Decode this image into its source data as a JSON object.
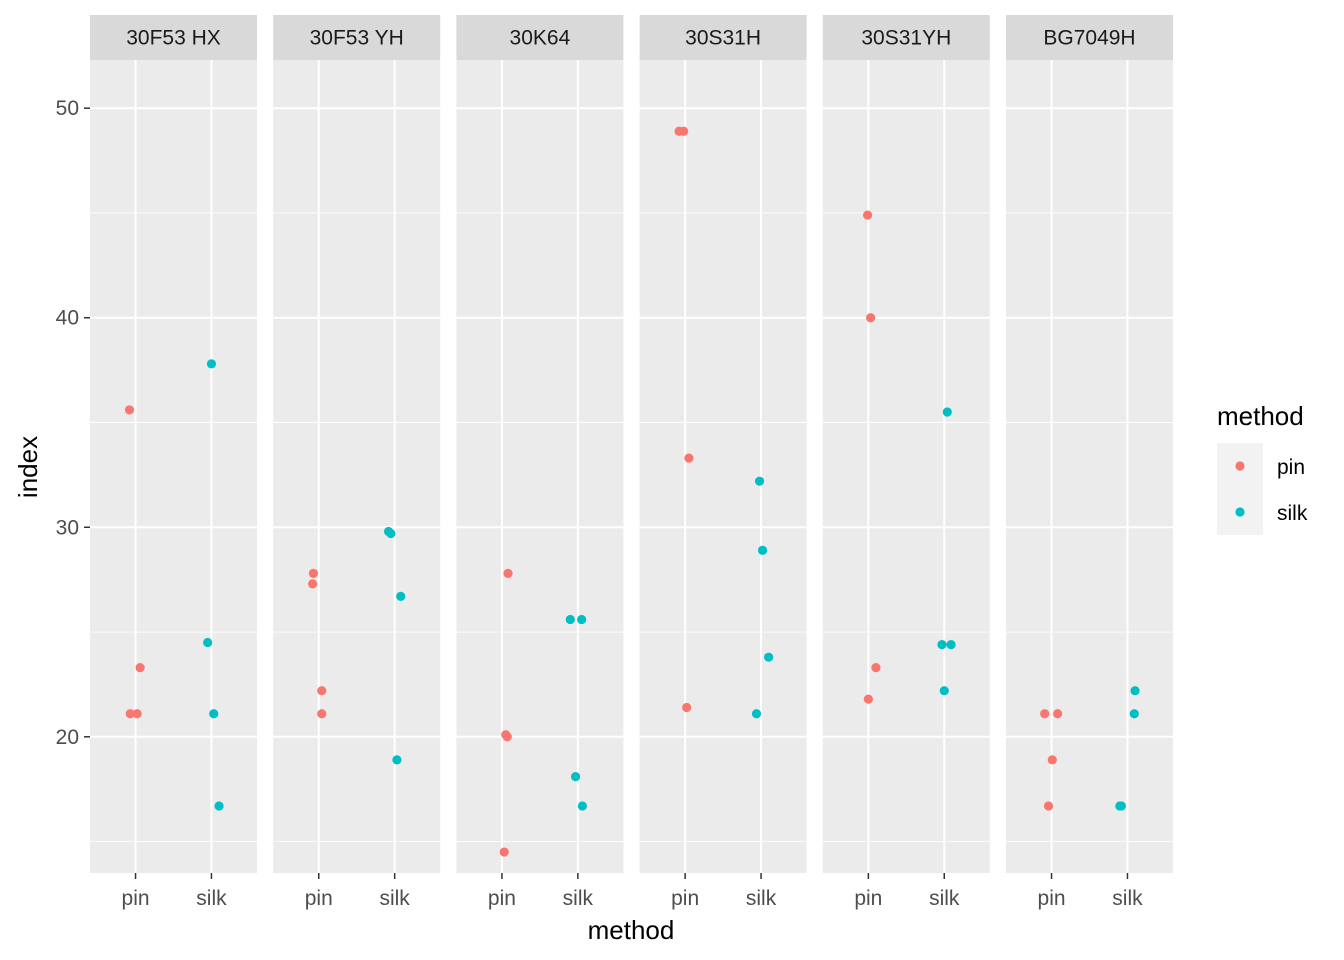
{
  "chart_data": {
    "type": "scatter",
    "facet_by": "variety",
    "xlabel": "method",
    "ylabel": "index",
    "ylim": [
      13.5,
      52.3
    ],
    "yticks": [
      20,
      30,
      40,
      50
    ],
    "categories": [
      "pin",
      "silk"
    ],
    "grid": true,
    "legend": {
      "title": "method",
      "position": "right",
      "entries": [
        {
          "label": "pin",
          "color": "#F8766D"
        },
        {
          "label": "silk",
          "color": "#00BFC4"
        }
      ]
    },
    "panels": [
      {
        "label": "30F53 HX",
        "series": [
          {
            "name": "pin",
            "points": [
              {
                "x": -0.08,
                "y": 35.6
              },
              {
                "x": 0.06,
                "y": 23.3
              },
              {
                "x": -0.07,
                "y": 21.1
              },
              {
                "x": 0.02,
                "y": 21.1
              }
            ]
          },
          {
            "name": "silk",
            "points": [
              {
                "x": 0.0,
                "y": 37.8
              },
              {
                "x": -0.05,
                "y": 24.5
              },
              {
                "x": 0.03,
                "y": 21.1
              },
              {
                "x": 0.1,
                "y": 16.7
              }
            ]
          }
        ]
      },
      {
        "label": "30F53 YH",
        "series": [
          {
            "name": "pin",
            "points": [
              {
                "x": -0.07,
                "y": 27.8
              },
              {
                "x": -0.08,
                "y": 27.3
              },
              {
                "x": 0.04,
                "y": 22.2
              },
              {
                "x": 0.04,
                "y": 21.1
              }
            ]
          },
          {
            "name": "silk",
            "points": [
              {
                "x": -0.08,
                "y": 29.8
              },
              {
                "x": -0.05,
                "y": 29.7
              },
              {
                "x": 0.08,
                "y": 26.7
              },
              {
                "x": 0.03,
                "y": 18.9
              }
            ]
          }
        ]
      },
      {
        "label": "30K64",
        "series": [
          {
            "name": "pin",
            "points": [
              {
                "x": 0.08,
                "y": 27.8
              },
              {
                "x": 0.05,
                "y": 20.1
              },
              {
                "x": 0.07,
                "y": 20.0
              },
              {
                "x": 0.03,
                "y": 14.5
              }
            ]
          },
          {
            "name": "silk",
            "points": [
              {
                "x": -0.1,
                "y": 25.6
              },
              {
                "x": 0.05,
                "y": 25.6
              },
              {
                "x": -0.03,
                "y": 18.1
              },
              {
                "x": 0.06,
                "y": 16.7
              }
            ]
          }
        ]
      },
      {
        "label": "30S31H",
        "series": [
          {
            "name": "pin",
            "points": [
              {
                "x": -0.08,
                "y": 48.9
              },
              {
                "x": -0.02,
                "y": 48.9
              },
              {
                "x": 0.05,
                "y": 33.3
              },
              {
                "x": 0.02,
                "y": 21.4
              }
            ]
          },
          {
            "name": "silk",
            "points": [
              {
                "x": -0.02,
                "y": 32.2
              },
              {
                "x": 0.02,
                "y": 28.9
              },
              {
                "x": 0.1,
                "y": 23.8
              },
              {
                "x": -0.06,
                "y": 21.1
              }
            ]
          }
        ]
      },
      {
        "label": "30S31YH",
        "series": [
          {
            "name": "pin",
            "points": [
              {
                "x": -0.01,
                "y": 44.9
              },
              {
                "x": 0.03,
                "y": 40.0
              },
              {
                "x": 0.1,
                "y": 23.3
              },
              {
                "x": 0.0,
                "y": 21.8
              }
            ]
          },
          {
            "name": "silk",
            "points": [
              {
                "x": 0.04,
                "y": 35.5
              },
              {
                "x": -0.03,
                "y": 24.4
              },
              {
                "x": 0.09,
                "y": 24.4
              },
              {
                "x": 0.0,
                "y": 22.2
              }
            ]
          }
        ]
      },
      {
        "label": "BG7049H",
        "series": [
          {
            "name": "pin",
            "points": [
              {
                "x": -0.09,
                "y": 21.1
              },
              {
                "x": 0.08,
                "y": 21.1
              },
              {
                "x": 0.01,
                "y": 18.9
              },
              {
                "x": -0.04,
                "y": 16.7
              }
            ]
          },
          {
            "name": "silk",
            "points": [
              {
                "x": 0.1,
                "y": 22.2
              },
              {
                "x": 0.09,
                "y": 21.1
              },
              {
                "x": -0.08,
                "y": 16.7
              },
              {
                "x": -0.1,
                "y": 16.7
              }
            ]
          }
        ]
      }
    ]
  }
}
